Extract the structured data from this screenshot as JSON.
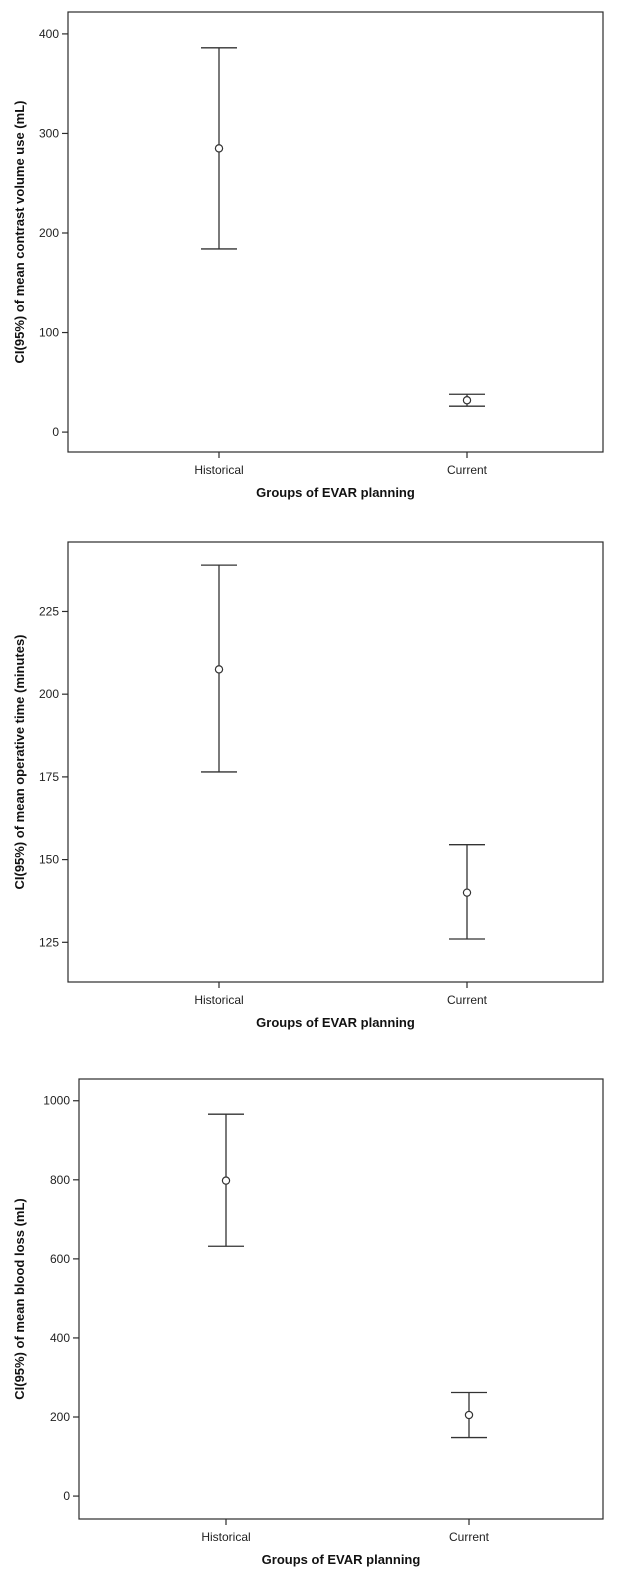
{
  "chart_data": [
    {
      "type": "errorbar",
      "title": "",
      "xlabel": "Groups of EVAR planning",
      "ylabel": "CI(95%) of mean contrast volume use (mL)",
      "categories": [
        "Historical",
        "Current"
      ],
      "yticks": [
        0,
        100,
        200,
        300,
        400
      ],
      "ylim": [
        -20,
        422
      ],
      "grid": false,
      "series": [
        {
          "mean": [
            285,
            32
          ],
          "lower": [
            184,
            26
          ],
          "upper": [
            386,
            38
          ]
        }
      ]
    },
    {
      "type": "errorbar",
      "title": "",
      "xlabel": "Groups of EVAR planning",
      "ylabel": "CI(95%) of mean operative time (minutes)",
      "categories": [
        "Historical",
        "Current"
      ],
      "yticks": [
        125,
        150,
        175,
        200,
        225
      ],
      "ylim": [
        113,
        246
      ],
      "grid": false,
      "series": [
        {
          "mean": [
            207.5,
            140
          ],
          "lower": [
            176.5,
            126
          ],
          "upper": [
            239,
            154.5
          ]
        }
      ]
    },
    {
      "type": "errorbar",
      "title": "",
      "xlabel": "Groups of EVAR planning",
      "ylabel": "CI(95%) of mean blood loss (mL)",
      "categories": [
        "Historical",
        "Current"
      ],
      "yticks": [
        0,
        200,
        400,
        600,
        800,
        1000
      ],
      "ylim": [
        -58,
        1055
      ],
      "grid": false,
      "series": [
        {
          "mean": [
            798,
            205
          ],
          "lower": [
            632,
            148
          ],
          "upper": [
            966,
            262
          ]
        }
      ]
    }
  ]
}
